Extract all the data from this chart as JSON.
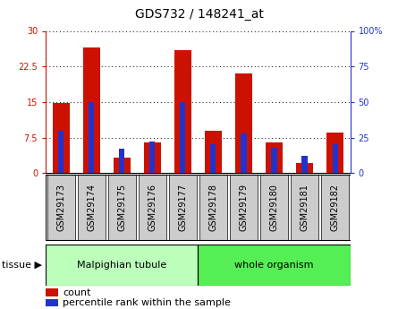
{
  "title": "GDS732 / 148241_at",
  "categories": [
    "GSM29173",
    "GSM29174",
    "GSM29175",
    "GSM29176",
    "GSM29177",
    "GSM29178",
    "GSM29179",
    "GSM29180",
    "GSM29181",
    "GSM29182"
  ],
  "count_values": [
    14.8,
    26.5,
    3.2,
    6.5,
    26.0,
    9.0,
    21.0,
    6.5,
    2.2,
    8.5
  ],
  "percentile_values": [
    30,
    50,
    17,
    22,
    50,
    20,
    28,
    18,
    12,
    20
  ],
  "tissue_groups": [
    {
      "label": "Malpighian tubule",
      "start": 0,
      "end": 5,
      "color": "#bbffbb"
    },
    {
      "label": "whole organism",
      "start": 5,
      "end": 10,
      "color": "#55ee55"
    }
  ],
  "ylim_left": [
    0,
    30
  ],
  "ylim_right": [
    0,
    100
  ],
  "yticks_left": [
    0,
    7.5,
    15,
    22.5,
    30
  ],
  "ytick_labels_left": [
    "0",
    "7.5",
    "15",
    "22.5",
    "30"
  ],
  "yticks_right": [
    0,
    25,
    50,
    75,
    100
  ],
  "ytick_labels_right": [
    "0",
    "25",
    "50",
    "75",
    "100%"
  ],
  "bar_color_count": "#cc1100",
  "bar_color_percentile": "#2233cc",
  "bar_width": 0.55,
  "blue_bar_width": 0.18,
  "background_plot": "#ffffff",
  "title_fontsize": 10,
  "tick_fontsize": 7,
  "label_fontsize": 8,
  "tissue_label": "tissue",
  "legend_count": "count",
  "legend_percentile": "percentile rank within the sample",
  "gray_box_color": "#cccccc",
  "frame_color": "#000000"
}
